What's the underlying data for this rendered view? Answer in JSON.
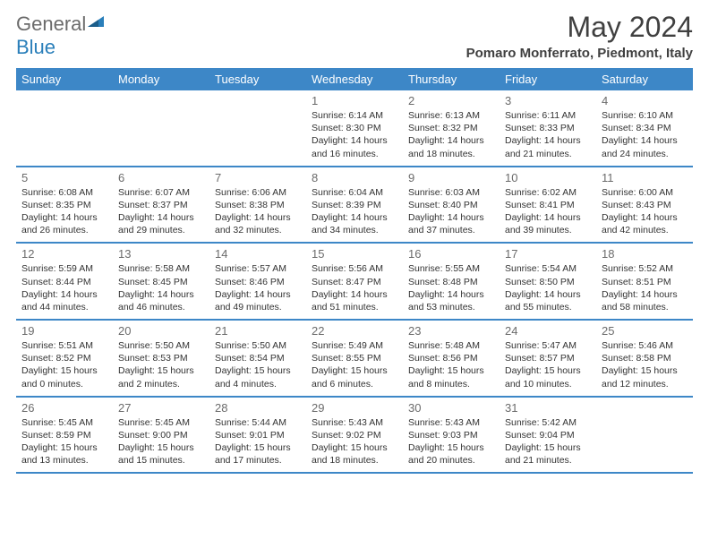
{
  "logo": {
    "text1": "General",
    "text2": "Blue"
  },
  "title": "May 2024",
  "location": "Pomaro Monferrato, Piedmont, Italy",
  "dayHeaders": [
    "Sunday",
    "Monday",
    "Tuesday",
    "Wednesday",
    "Thursday",
    "Friday",
    "Saturday"
  ],
  "colors": {
    "header_bg": "#3d87c7",
    "header_text": "#ffffff",
    "border": "#3d87c7",
    "daynum": "#6b6b6b",
    "text": "#333333",
    "logo_gray": "#6b6b6b",
    "logo_blue": "#2a7fba"
  },
  "weeks": [
    [
      {
        "num": "",
        "lines": []
      },
      {
        "num": "",
        "lines": []
      },
      {
        "num": "",
        "lines": []
      },
      {
        "num": "1",
        "lines": [
          "Sunrise: 6:14 AM",
          "Sunset: 8:30 PM",
          "Daylight: 14 hours",
          "and 16 minutes."
        ]
      },
      {
        "num": "2",
        "lines": [
          "Sunrise: 6:13 AM",
          "Sunset: 8:32 PM",
          "Daylight: 14 hours",
          "and 18 minutes."
        ]
      },
      {
        "num": "3",
        "lines": [
          "Sunrise: 6:11 AM",
          "Sunset: 8:33 PM",
          "Daylight: 14 hours",
          "and 21 minutes."
        ]
      },
      {
        "num": "4",
        "lines": [
          "Sunrise: 6:10 AM",
          "Sunset: 8:34 PM",
          "Daylight: 14 hours",
          "and 24 minutes."
        ]
      }
    ],
    [
      {
        "num": "5",
        "lines": [
          "Sunrise: 6:08 AM",
          "Sunset: 8:35 PM",
          "Daylight: 14 hours",
          "and 26 minutes."
        ]
      },
      {
        "num": "6",
        "lines": [
          "Sunrise: 6:07 AM",
          "Sunset: 8:37 PM",
          "Daylight: 14 hours",
          "and 29 minutes."
        ]
      },
      {
        "num": "7",
        "lines": [
          "Sunrise: 6:06 AM",
          "Sunset: 8:38 PM",
          "Daylight: 14 hours",
          "and 32 minutes."
        ]
      },
      {
        "num": "8",
        "lines": [
          "Sunrise: 6:04 AM",
          "Sunset: 8:39 PM",
          "Daylight: 14 hours",
          "and 34 minutes."
        ]
      },
      {
        "num": "9",
        "lines": [
          "Sunrise: 6:03 AM",
          "Sunset: 8:40 PM",
          "Daylight: 14 hours",
          "and 37 minutes."
        ]
      },
      {
        "num": "10",
        "lines": [
          "Sunrise: 6:02 AM",
          "Sunset: 8:41 PM",
          "Daylight: 14 hours",
          "and 39 minutes."
        ]
      },
      {
        "num": "11",
        "lines": [
          "Sunrise: 6:00 AM",
          "Sunset: 8:43 PM",
          "Daylight: 14 hours",
          "and 42 minutes."
        ]
      }
    ],
    [
      {
        "num": "12",
        "lines": [
          "Sunrise: 5:59 AM",
          "Sunset: 8:44 PM",
          "Daylight: 14 hours",
          "and 44 minutes."
        ]
      },
      {
        "num": "13",
        "lines": [
          "Sunrise: 5:58 AM",
          "Sunset: 8:45 PM",
          "Daylight: 14 hours",
          "and 46 minutes."
        ]
      },
      {
        "num": "14",
        "lines": [
          "Sunrise: 5:57 AM",
          "Sunset: 8:46 PM",
          "Daylight: 14 hours",
          "and 49 minutes."
        ]
      },
      {
        "num": "15",
        "lines": [
          "Sunrise: 5:56 AM",
          "Sunset: 8:47 PM",
          "Daylight: 14 hours",
          "and 51 minutes."
        ]
      },
      {
        "num": "16",
        "lines": [
          "Sunrise: 5:55 AM",
          "Sunset: 8:48 PM",
          "Daylight: 14 hours",
          "and 53 minutes."
        ]
      },
      {
        "num": "17",
        "lines": [
          "Sunrise: 5:54 AM",
          "Sunset: 8:50 PM",
          "Daylight: 14 hours",
          "and 55 minutes."
        ]
      },
      {
        "num": "18",
        "lines": [
          "Sunrise: 5:52 AM",
          "Sunset: 8:51 PM",
          "Daylight: 14 hours",
          "and 58 minutes."
        ]
      }
    ],
    [
      {
        "num": "19",
        "lines": [
          "Sunrise: 5:51 AM",
          "Sunset: 8:52 PM",
          "Daylight: 15 hours",
          "and 0 minutes."
        ]
      },
      {
        "num": "20",
        "lines": [
          "Sunrise: 5:50 AM",
          "Sunset: 8:53 PM",
          "Daylight: 15 hours",
          "and 2 minutes."
        ]
      },
      {
        "num": "21",
        "lines": [
          "Sunrise: 5:50 AM",
          "Sunset: 8:54 PM",
          "Daylight: 15 hours",
          "and 4 minutes."
        ]
      },
      {
        "num": "22",
        "lines": [
          "Sunrise: 5:49 AM",
          "Sunset: 8:55 PM",
          "Daylight: 15 hours",
          "and 6 minutes."
        ]
      },
      {
        "num": "23",
        "lines": [
          "Sunrise: 5:48 AM",
          "Sunset: 8:56 PM",
          "Daylight: 15 hours",
          "and 8 minutes."
        ]
      },
      {
        "num": "24",
        "lines": [
          "Sunrise: 5:47 AM",
          "Sunset: 8:57 PM",
          "Daylight: 15 hours",
          "and 10 minutes."
        ]
      },
      {
        "num": "25",
        "lines": [
          "Sunrise: 5:46 AM",
          "Sunset: 8:58 PM",
          "Daylight: 15 hours",
          "and 12 minutes."
        ]
      }
    ],
    [
      {
        "num": "26",
        "lines": [
          "Sunrise: 5:45 AM",
          "Sunset: 8:59 PM",
          "Daylight: 15 hours",
          "and 13 minutes."
        ]
      },
      {
        "num": "27",
        "lines": [
          "Sunrise: 5:45 AM",
          "Sunset: 9:00 PM",
          "Daylight: 15 hours",
          "and 15 minutes."
        ]
      },
      {
        "num": "28",
        "lines": [
          "Sunrise: 5:44 AM",
          "Sunset: 9:01 PM",
          "Daylight: 15 hours",
          "and 17 minutes."
        ]
      },
      {
        "num": "29",
        "lines": [
          "Sunrise: 5:43 AM",
          "Sunset: 9:02 PM",
          "Daylight: 15 hours",
          "and 18 minutes."
        ]
      },
      {
        "num": "30",
        "lines": [
          "Sunrise: 5:43 AM",
          "Sunset: 9:03 PM",
          "Daylight: 15 hours",
          "and 20 minutes."
        ]
      },
      {
        "num": "31",
        "lines": [
          "Sunrise: 5:42 AM",
          "Sunset: 9:04 PM",
          "Daylight: 15 hours",
          "and 21 minutes."
        ]
      },
      {
        "num": "",
        "lines": []
      }
    ]
  ]
}
